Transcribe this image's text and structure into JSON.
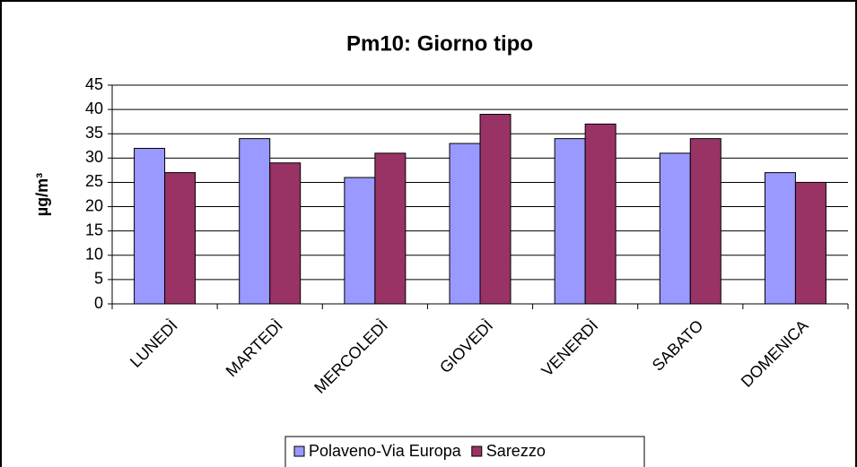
{
  "chart_data": {
    "type": "bar",
    "title": "Pm10: Giorno tipo",
    "y_label": "µg/m³",
    "categories": [
      "LUNEDÌ",
      "MARTEDÌ",
      "MERCOLEDÌ",
      "GIOVEDÌ",
      "VENERDÌ",
      "SABATO",
      "DOMENICA"
    ],
    "series": [
      {
        "name": "Polaveno-Via Europa",
        "color": "#9999ff",
        "values": [
          32,
          34,
          26,
          33,
          34,
          31,
          27
        ]
      },
      {
        "name": "Sarezzo",
        "color": "#993366",
        "values": [
          27,
          29,
          31,
          39,
          37,
          34,
          25
        ]
      }
    ],
    "ylim": [
      0,
      45
    ],
    "yticks": [
      0,
      5,
      10,
      15,
      20,
      25,
      30,
      35,
      40,
      45
    ],
    "grid": true,
    "legend": "bottom"
  }
}
